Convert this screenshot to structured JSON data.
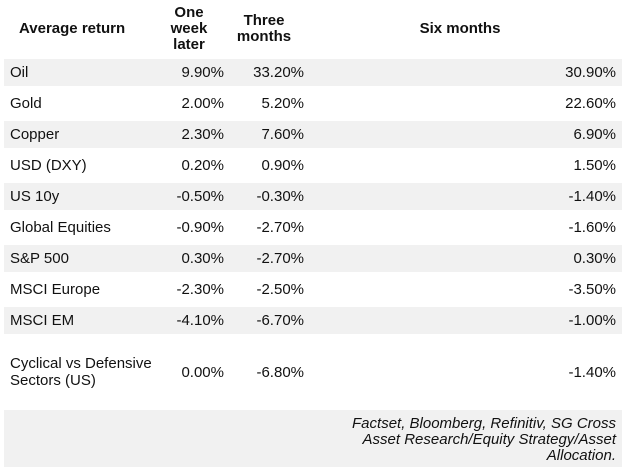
{
  "table": {
    "columns": [
      {
        "label": "Average return"
      },
      {
        "label": "One week later"
      },
      {
        "label": "Three months"
      },
      {
        "label": "Six months"
      }
    ],
    "rows": [
      {
        "label": "Oil",
        "one_week": "9.90%",
        "three_months": "33.20%",
        "six_months": "30.90%"
      },
      {
        "label": "Gold",
        "one_week": "2.00%",
        "three_months": "5.20%",
        "six_months": "22.60%"
      },
      {
        "label": "Copper",
        "one_week": "2.30%",
        "three_months": "7.60%",
        "six_months": "6.90%"
      },
      {
        "label": "USD (DXY)",
        "one_week": "0.20%",
        "three_months": "0.90%",
        "six_months": "1.50%"
      },
      {
        "label": "US 10y",
        "one_week": "-0.50%",
        "three_months": "-0.30%",
        "six_months": "-1.40%"
      },
      {
        "label": "Global Equities",
        "one_week": "-0.90%",
        "three_months": "-2.70%",
        "six_months": "-1.60%"
      },
      {
        "label": "S&P 500",
        "one_week": "0.30%",
        "three_months": "-2.70%",
        "six_months": "0.30%"
      },
      {
        "label": "MSCI Europe",
        "one_week": "-2.30%",
        "three_months": "-2.50%",
        "six_months": "-3.50%"
      },
      {
        "label": "MSCI EM",
        "one_week": "-4.10%",
        "three_months": "-6.70%",
        "six_months": "-1.00%"
      },
      {
        "label": "Cyclical vs Defensive Sectors (US)",
        "one_week": "0.00%",
        "three_months": "-6.80%",
        "six_months": "-1.40%"
      }
    ],
    "source_note": "Factset, Bloomberg, Refinitiv, SG Cross Asset Research/Equity Strategy/Asset Allocation."
  },
  "colors": {
    "stripe": "#f1f1f1",
    "background": "#ffffff",
    "text": "#111111"
  },
  "chart_data": {
    "type": "table",
    "title": "Average return",
    "columns": [
      "Average return",
      "One week later",
      "Three months",
      "Six months"
    ],
    "unit": "percent",
    "rows": [
      {
        "label": "Oil",
        "values_pct": [
          9.9,
          33.2,
          30.9
        ]
      },
      {
        "label": "Gold",
        "values_pct": [
          2.0,
          5.2,
          22.6
        ]
      },
      {
        "label": "Copper",
        "values_pct": [
          2.3,
          7.6,
          6.9
        ]
      },
      {
        "label": "USD (DXY)",
        "values_pct": [
          0.2,
          0.9,
          1.5
        ]
      },
      {
        "label": "US 10y",
        "values_pct": [
          -0.5,
          -0.3,
          -1.4
        ]
      },
      {
        "label": "Global Equities",
        "values_pct": [
          -0.9,
          -2.7,
          -1.6
        ]
      },
      {
        "label": "S&P 500",
        "values_pct": [
          0.3,
          -2.7,
          0.3
        ]
      },
      {
        "label": "MSCI Europe",
        "values_pct": [
          -2.3,
          -2.5,
          -3.5
        ]
      },
      {
        "label": "MSCI EM",
        "values_pct": [
          -4.1,
          -6.7,
          -1.0
        ]
      },
      {
        "label": "Cyclical vs Defensive Sectors (US)",
        "values_pct": [
          0.0,
          -6.8,
          -1.4
        ]
      }
    ],
    "source": "Factset, Bloomberg, Refinitiv, SG Cross Asset Research/Equity Strategy/Asset Allocation.",
    "layout": {
      "striped_rows": true,
      "stripe_color": "#f1f1f1",
      "value_alignment": "right",
      "header_alignment": "center"
    }
  }
}
